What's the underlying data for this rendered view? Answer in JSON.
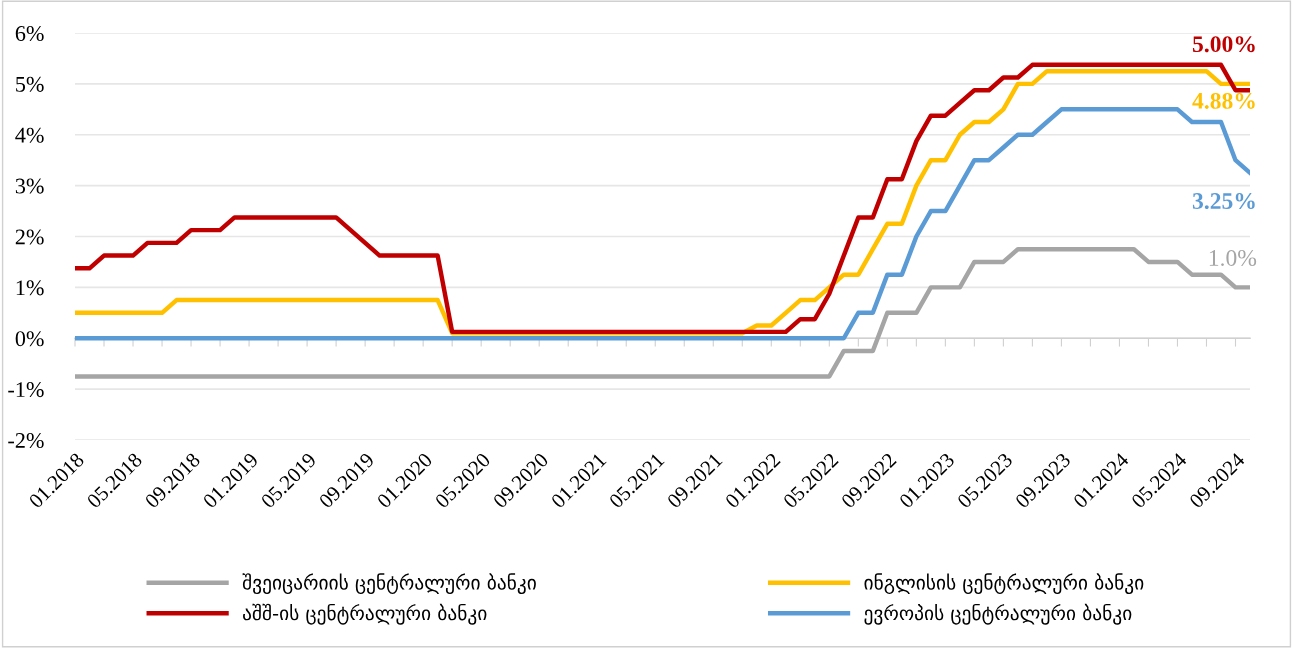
{
  "chart_data": {
    "type": "line",
    "categories": [
      "01.2018",
      null,
      null,
      null,
      "05.2018",
      null,
      null,
      null,
      "09.2018",
      null,
      null,
      null,
      "01.2019",
      null,
      null,
      null,
      "05.2019",
      null,
      null,
      null,
      "09.2019",
      null,
      null,
      null,
      "01.2020",
      null,
      null,
      null,
      "05.2020",
      null,
      null,
      null,
      "09.2020",
      null,
      null,
      null,
      "01.2021",
      null,
      null,
      null,
      "05.2021",
      null,
      null,
      null,
      "09.2021",
      null,
      null,
      null,
      "01.2022",
      null,
      null,
      null,
      "05.2022",
      null,
      null,
      null,
      "09.2022",
      null,
      null,
      null,
      "01.2023",
      null,
      null,
      null,
      "05.2023",
      null,
      null,
      null,
      "09.2023",
      null,
      null,
      null,
      "01.2024",
      null,
      null,
      null,
      "05.2024",
      null,
      null,
      null,
      "09.2024",
      null
    ],
    "ylim": [
      -2,
      6
    ],
    "yticks": [
      {
        "value": -2,
        "label": "-2%"
      },
      {
        "value": -1,
        "label": "-1%"
      },
      {
        "value": 0,
        "label": "0%"
      },
      {
        "value": 1,
        "label": "1%"
      },
      {
        "value": 2,
        "label": "2%"
      },
      {
        "value": 3,
        "label": "3%"
      },
      {
        "value": 4,
        "label": "4%"
      },
      {
        "value": 5,
        "label": "5%"
      },
      {
        "value": 6,
        "label": "6%"
      }
    ],
    "annotations": [
      "1.0%",
      "4.88%",
      "5.00%",
      "3.25%"
    ],
    "grid": "y",
    "legend": "bottom",
    "marker": "none",
    "line_style": "solid",
    "series": [
      {
        "name": "შვეიცარიის ცენტრალური ბანკი",
        "color": "#a5a5a5",
        "values": [
          -0.75,
          -0.75,
          -0.75,
          -0.75,
          -0.75,
          -0.75,
          -0.75,
          -0.75,
          -0.75,
          -0.75,
          -0.75,
          -0.75,
          -0.75,
          -0.75,
          -0.75,
          -0.75,
          -0.75,
          -0.75,
          -0.75,
          -0.75,
          -0.75,
          -0.75,
          -0.75,
          -0.75,
          -0.75,
          -0.75,
          -0.75,
          -0.75,
          -0.75,
          -0.75,
          -0.75,
          -0.75,
          -0.75,
          -0.75,
          -0.75,
          -0.75,
          -0.75,
          -0.75,
          -0.75,
          -0.75,
          -0.75,
          -0.75,
          -0.75,
          -0.75,
          -0.75,
          -0.75,
          -0.75,
          -0.75,
          -0.75,
          -0.75,
          -0.75,
          -0.75,
          -0.75,
          -0.25,
          -0.25,
          -0.25,
          0.5,
          0.5,
          0.5,
          1.0,
          1.0,
          1.0,
          1.5,
          1.5,
          1.5,
          1.75,
          1.75,
          1.75,
          1.75,
          1.75,
          1.75,
          1.75,
          1.75,
          1.75,
          1.5,
          1.5,
          1.5,
          1.25,
          1.25,
          1.25,
          1.0,
          1.0
        ]
      },
      {
        "name": "ინგლისის ცენტრალური ბანკი",
        "color": "#ffc000",
        "values": [
          0.5,
          0.5,
          0.5,
          0.5,
          0.5,
          0.5,
          0.5,
          0.75,
          0.75,
          0.75,
          0.75,
          0.75,
          0.75,
          0.75,
          0.75,
          0.75,
          0.75,
          0.75,
          0.75,
          0.75,
          0.75,
          0.75,
          0.75,
          0.75,
          0.75,
          0.75,
          0.1,
          0.1,
          0.1,
          0.1,
          0.1,
          0.1,
          0.1,
          0.1,
          0.1,
          0.1,
          0.1,
          0.1,
          0.1,
          0.1,
          0.1,
          0.1,
          0.1,
          0.1,
          0.1,
          0.1,
          0.1,
          0.25,
          0.25,
          0.5,
          0.75,
          0.75,
          1.0,
          1.25,
          1.25,
          1.75,
          2.25,
          2.25,
          3.0,
          3.5,
          3.5,
          4.0,
          4.25,
          4.25,
          4.5,
          5.0,
          5.0,
          5.25,
          5.25,
          5.25,
          5.25,
          5.25,
          5.25,
          5.25,
          5.25,
          5.25,
          5.25,
          5.25,
          5.25,
          5.0,
          5.0,
          5.0
        ]
      },
      {
        "name": "აშშ-ის ცენტრალური ბანკი",
        "color": "#c00000",
        "values": [
          1.375,
          1.375,
          1.625,
          1.625,
          1.625,
          1.875,
          1.875,
          1.875,
          2.125,
          2.125,
          2.125,
          2.375,
          2.375,
          2.375,
          2.375,
          2.375,
          2.375,
          2.375,
          2.375,
          2.125,
          1.875,
          1.625,
          1.625,
          1.625,
          1.625,
          1.625,
          0.125,
          0.125,
          0.125,
          0.125,
          0.125,
          0.125,
          0.125,
          0.125,
          0.125,
          0.125,
          0.125,
          0.125,
          0.125,
          0.125,
          0.125,
          0.125,
          0.125,
          0.125,
          0.125,
          0.125,
          0.125,
          0.125,
          0.125,
          0.125,
          0.375,
          0.375,
          0.875,
          1.625,
          2.375,
          2.375,
          3.125,
          3.125,
          3.875,
          4.375,
          4.375,
          4.625,
          4.875,
          4.875,
          5.125,
          5.125,
          5.375,
          5.375,
          5.375,
          5.375,
          5.375,
          5.375,
          5.375,
          5.375,
          5.375,
          5.375,
          5.375,
          5.375,
          5.375,
          5.375,
          4.875,
          4.875
        ]
      },
      {
        "name": "ევროპის ცენტრალური ბანკი",
        "color": "#5b9bd5",
        "values": [
          0,
          0,
          0,
          0,
          0,
          0,
          0,
          0,
          0,
          0,
          0,
          0,
          0,
          0,
          0,
          0,
          0,
          0,
          0,
          0,
          0,
          0,
          0,
          0,
          0,
          0,
          0,
          0,
          0,
          0,
          0,
          0,
          0,
          0,
          0,
          0,
          0,
          0,
          0,
          0,
          0,
          0,
          0,
          0,
          0,
          0,
          0,
          0,
          0,
          0,
          0,
          0,
          0,
          0,
          0.5,
          0.5,
          1.25,
          1.25,
          2.0,
          2.5,
          2.5,
          3.0,
          3.5,
          3.5,
          3.75,
          4.0,
          4.0,
          4.25,
          4.5,
          4.5,
          4.5,
          4.5,
          4.5,
          4.5,
          4.5,
          4.5,
          4.5,
          4.25,
          4.25,
          4.25,
          3.5,
          3.25
        ]
      }
    ]
  }
}
